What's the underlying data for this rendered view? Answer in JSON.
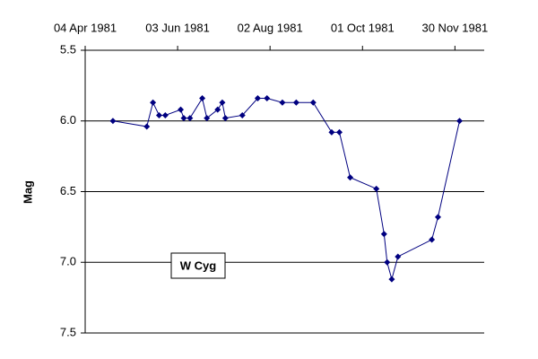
{
  "chart_data": {
    "type": "line",
    "y_label": "Mag",
    "annotation": "W Cyg",
    "x": [
      "1981-04-22",
      "1981-05-14",
      "1981-05-18",
      "1981-05-22",
      "1981-05-26",
      "1981-06-05",
      "1981-06-07",
      "1981-06-11",
      "1981-06-19",
      "1981-06-22",
      "1981-06-29",
      "1981-07-02",
      "1981-07-04",
      "1981-07-15",
      "1981-07-25",
      "1981-07-31",
      "1981-08-10",
      "1981-08-19",
      "1981-08-30",
      "1981-09-11",
      "1981-09-16",
      "1981-09-23",
      "1981-10-10",
      "1981-10-15",
      "1981-10-17",
      "1981-10-20",
      "1981-10-24",
      "1981-11-15",
      "1981-11-19",
      "1981-12-03"
    ],
    "series": [
      {
        "name": "W Cyg",
        "color": "#000080",
        "values": [
          6.0,
          6.04,
          5.87,
          5.96,
          5.96,
          5.92,
          5.98,
          5.98,
          5.84,
          5.98,
          5.92,
          5.87,
          5.98,
          5.96,
          5.84,
          5.84,
          5.87,
          5.87,
          5.87,
          6.08,
          6.08,
          6.4,
          6.48,
          6.8,
          7.0,
          7.12,
          6.96,
          6.84,
          6.68,
          6.0
        ]
      }
    ],
    "xlim": [
      "1981-04-04",
      "1981-12-19"
    ],
    "xticks": [
      {
        "value": "1981-04-04",
        "label": "04 Apr 1981"
      },
      {
        "value": "1981-06-03",
        "label": "03 Jun 1981"
      },
      {
        "value": "1981-08-02",
        "label": "02 Aug 1981"
      },
      {
        "value": "1981-10-01",
        "label": "01 Oct 1981"
      },
      {
        "value": "1981-11-30",
        "label": "30 Nov 1981"
      }
    ],
    "ylim": [
      5.5,
      7.5
    ],
    "yticks": [
      {
        "value": 5.5,
        "label": "5.5"
      },
      {
        "value": 6.0,
        "label": "6.0"
      },
      {
        "value": 6.5,
        "label": "6.5"
      },
      {
        "value": 7.0,
        "label": "7.0"
      },
      {
        "value": 7.5,
        "label": "7.5"
      }
    ],
    "y_inverted": true,
    "grid": true
  }
}
